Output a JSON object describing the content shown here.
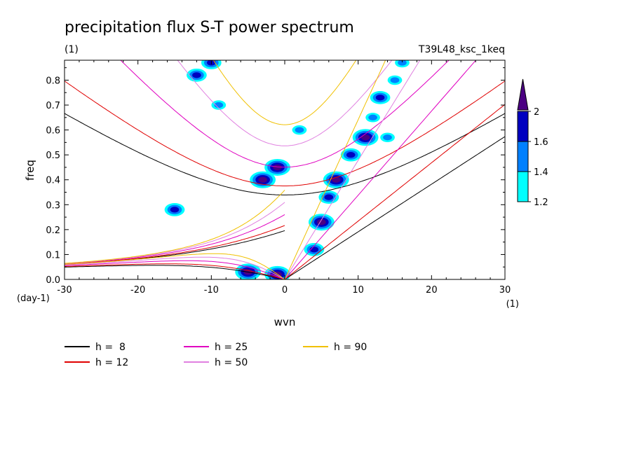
{
  "chart_data": {
    "type": "line",
    "title": "precipitation flux S-T power spectrum",
    "subtitle_left": "(1)",
    "subtitle_right": "T39L48_ksc_1keq",
    "xlabel": "wvn",
    "ylabel": "freq",
    "x_units": "(1)",
    "y_units": "(day-1)",
    "xlim": [
      -30,
      30
    ],
    "ylim": [
      0,
      0.88
    ],
    "xticks": [
      "-30",
      "-20",
      "-10",
      "0",
      "10",
      "20",
      "30"
    ],
    "yticks": [
      "0.0",
      "0.1",
      "0.2",
      "0.3",
      "0.4",
      "0.5",
      "0.6",
      "0.7",
      "0.8"
    ],
    "colorbar": {
      "labels": [
        "1.2",
        "1.4",
        "1.6",
        "2"
      ],
      "levels": [
        1.2,
        1.4,
        1.6,
        1.8,
        2.0
      ],
      "colors": [
        "#00ffff",
        "#0080ff",
        "#0000c0",
        "#4b0082"
      ]
    },
    "series": [
      {
        "name": "h =  8",
        "color": "#000000"
      },
      {
        "name": "h = 12",
        "color": "#e00000"
      },
      {
        "name": "h = 25",
        "color": "#e000c0"
      },
      {
        "name": "h = 50",
        "color": "#e080e0"
      },
      {
        "name": "h = 90",
        "color": "#f0c000"
      }
    ],
    "contour_blobs": [
      {
        "x": 5,
        "y": 0.23,
        "level": 4
      },
      {
        "x": 6,
        "y": 0.33,
        "level": 3
      },
      {
        "x": 7,
        "y": 0.4,
        "level": 4
      },
      {
        "x": 9,
        "y": 0.5,
        "level": 3
      },
      {
        "x": 11,
        "y": 0.57,
        "level": 4
      },
      {
        "x": 12,
        "y": 0.65,
        "level": 2
      },
      {
        "x": 13,
        "y": 0.73,
        "level": 3
      },
      {
        "x": 15,
        "y": 0.8,
        "level": 2
      },
      {
        "x": 16,
        "y": 0.87,
        "level": 2
      },
      {
        "x": 4,
        "y": 0.12,
        "level": 3
      },
      {
        "x": -1,
        "y": 0.02,
        "level": 4
      },
      {
        "x": -5,
        "y": 0.03,
        "level": 4
      },
      {
        "x": -1,
        "y": 0.45,
        "level": 4
      },
      {
        "x": -3,
        "y": 0.4,
        "level": 4
      },
      {
        "x": -12,
        "y": 0.82,
        "level": 3
      },
      {
        "x": -10,
        "y": 0.87,
        "level": 3
      },
      {
        "x": -9,
        "y": 0.7,
        "level": 2
      },
      {
        "x": -15,
        "y": 0.28,
        "level": 3
      },
      {
        "x": 2,
        "y": 0.6,
        "level": 2
      },
      {
        "x": 14,
        "y": 0.57,
        "level": 2
      }
    ]
  }
}
